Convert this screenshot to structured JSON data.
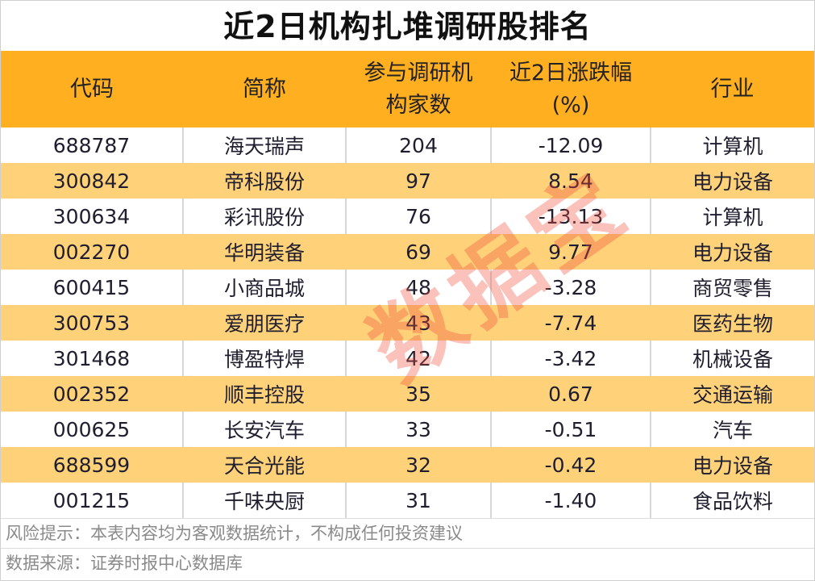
{
  "title": "近2日机构扎堆调研股排名",
  "chart_data": {
    "type": "table",
    "title": "近2日机构扎堆调研股排名",
    "columns": [
      "代码",
      "简称",
      "参与调研机构家数",
      "近2日涨跌幅(%)",
      "行业"
    ],
    "header_lines": [
      [
        "代码"
      ],
      [
        "简称"
      ],
      [
        "参与调研机",
        "构家数"
      ],
      [
        "近2日涨跌幅",
        "(%)"
      ],
      [
        "行业"
      ]
    ],
    "rows": [
      [
        "688787",
        "海天瑞声",
        "204",
        "-12.09",
        "计算机"
      ],
      [
        "300842",
        "帝科股份",
        "97",
        "8.54",
        "电力设备"
      ],
      [
        "300634",
        "彩讯股份",
        "76",
        "-13.13",
        "计算机"
      ],
      [
        "002270",
        "华明装备",
        "69",
        "9.77",
        "电力设备"
      ],
      [
        "600415",
        "小商品城",
        "48",
        "-3.28",
        "商贸零售"
      ],
      [
        "300753",
        "爱朋医疗",
        "43",
        "-7.74",
        "医药生物"
      ],
      [
        "301468",
        "博盈特焊",
        "42",
        "-3.42",
        "机械设备"
      ],
      [
        "002352",
        "顺丰控股",
        "35",
        "0.67",
        "交通运输"
      ],
      [
        "000625",
        "长安汽车",
        "33",
        "-0.51",
        "汽车"
      ],
      [
        "688599",
        "天合光能",
        "32",
        "-0.42",
        "电力设备"
      ],
      [
        "001215",
        "千味央厨",
        "31",
        "-1.40",
        "食品饮料"
      ]
    ]
  },
  "footer": {
    "risk": "风险提示：本表内容均为客观数据统计，不构成任何投资建议",
    "source": "数据来源：证券时报中心数据库"
  },
  "watermark": "数据宝",
  "colors": {
    "header": "#FFAF1F",
    "stripe": "#FFD27A",
    "watermark": "#F0503C"
  }
}
